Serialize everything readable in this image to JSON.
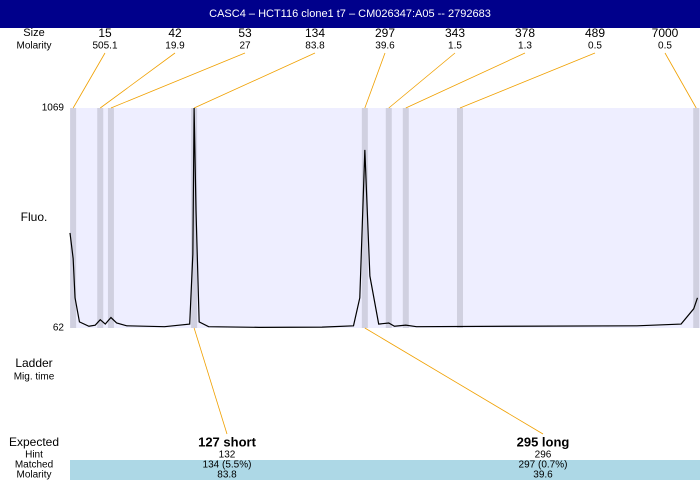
{
  "chart_data": {
    "type": "line",
    "title": "CASC4 – HCT116 clone1 t7 – CM026347:A05 -- 2792683",
    "size_label": "Size",
    "molarity_label": "Molarity",
    "ylabel": "Fluo.",
    "ylim": [
      62,
      1069
    ],
    "yticks": [
      62,
      1069
    ],
    "xlim": [
      0,
      100
    ],
    "peaks": {
      "sizes": [
        15,
        42,
        53,
        134,
        297,
        343,
        378,
        489,
        7000
      ],
      "molarity": [
        505.1,
        19.9,
        27,
        83.8,
        39.6,
        1.5,
        1.3,
        0.5,
        0.5
      ],
      "x": [
        0.5,
        4.8,
        6.5,
        19.7,
        46.8,
        50.6,
        53.3,
        61.9,
        99.4
      ]
    },
    "series": [
      {
        "name": "Fluo.",
        "color": "#000000",
        "x": [
          0,
          0.5,
          0.8,
          1.5,
          3,
          4,
          4.8,
          5.6,
          6.5,
          7.4,
          9,
          15,
          19,
          19.5,
          19.7,
          20,
          20.5,
          22,
          30,
          40,
          45,
          46,
          46.8,
          47.6,
          49,
          50.6,
          51.5,
          53.3,
          55,
          70,
          90,
          97,
          99,
          99.6
        ],
        "values": [
          497,
          380,
          200,
          90,
          70,
          75,
          100,
          80,
          110,
          85,
          72,
          68,
          80,
          400,
          1069,
          600,
          90,
          68,
          65,
          66,
          72,
          200,
          877,
          300,
          80,
          85,
          70,
          75,
          68,
          70,
          72,
          80,
          150,
          200
        ]
      }
    ],
    "ladder_label": "Ladder",
    "migtime_label": "Mig. time",
    "expected_label": "Expected",
    "hint_label": "Hint",
    "matched_label": "Matched",
    "molarity_row_label": "Molarity",
    "expected": [
      {
        "label": "127 short",
        "hint": 132,
        "matched": "134 (5.5%)",
        "molarity": 83.8
      },
      {
        "label": "295 long",
        "hint": 296,
        "matched": "297 (0.7%)",
        "molarity": 39.6
      }
    ]
  }
}
